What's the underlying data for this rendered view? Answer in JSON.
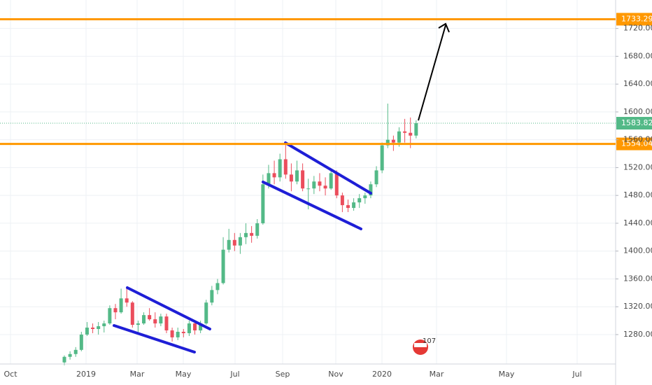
{
  "chart_data": {
    "type": "candlestick",
    "ylim": [
      1237.7,
      1760.9
    ],
    "yticks": [
      {
        "value": 1280,
        "label": "1280.00"
      },
      {
        "value": 1320,
        "label": "1320.00"
      },
      {
        "value": 1360,
        "label": "1360.00"
      },
      {
        "value": 1400,
        "label": "1400.00"
      },
      {
        "value": 1440,
        "label": "1440.00"
      },
      {
        "value": 1480,
        "label": "1480.00"
      },
      {
        "value": 1520,
        "label": "1520.00"
      },
      {
        "value": 1560,
        "label": "1560.00"
      },
      {
        "value": 1600,
        "label": "1600.00"
      },
      {
        "value": 1640,
        "label": "1640.00"
      },
      {
        "value": 1680,
        "label": "1680.00"
      },
      {
        "value": 1720,
        "label": "1720.00"
      }
    ],
    "xtick_labels": [
      "Oct",
      "2019",
      "Mar",
      "May",
      "Jul",
      "Sep",
      "Nov",
      "2020",
      "Mar",
      "May",
      "Jul"
    ],
    "up_color": "#53b987",
    "down_color": "#eb4d5c",
    "grid": true,
    "candles": [
      {
        "o": 1240,
        "h": 1250,
        "l": 1236,
        "c": 1248
      },
      {
        "o": 1248,
        "h": 1256,
        "l": 1244,
        "c": 1252
      },
      {
        "o": 1252,
        "h": 1262,
        "l": 1248,
        "c": 1258
      },
      {
        "o": 1258,
        "h": 1284,
        "l": 1256,
        "c": 1280
      },
      {
        "o": 1280,
        "h": 1298,
        "l": 1278,
        "c": 1290
      },
      {
        "o": 1290,
        "h": 1296,
        "l": 1282,
        "c": 1288
      },
      {
        "o": 1288,
        "h": 1298,
        "l": 1280,
        "c": 1292
      },
      {
        "o": 1292,
        "h": 1300,
        "l": 1283,
        "c": 1296
      },
      {
        "o": 1296,
        "h": 1322,
        "l": 1294,
        "c": 1318
      },
      {
        "o": 1318,
        "h": 1324,
        "l": 1302,
        "c": 1312
      },
      {
        "o": 1312,
        "h": 1346,
        "l": 1310,
        "c": 1332
      },
      {
        "o": 1332,
        "h": 1346,
        "l": 1320,
        "c": 1326
      },
      {
        "o": 1326,
        "h": 1328,
        "l": 1290,
        "c": 1294
      },
      {
        "o": 1294,
        "h": 1300,
        "l": 1282,
        "c": 1296
      },
      {
        "o": 1296,
        "h": 1312,
        "l": 1294,
        "c": 1308
      },
      {
        "o": 1308,
        "h": 1318,
        "l": 1300,
        "c": 1302
      },
      {
        "o": 1302,
        "h": 1312,
        "l": 1290,
        "c": 1296
      },
      {
        "o": 1296,
        "h": 1310,
        "l": 1292,
        "c": 1306
      },
      {
        "o": 1306,
        "h": 1310,
        "l": 1282,
        "c": 1286
      },
      {
        "o": 1286,
        "h": 1290,
        "l": 1270,
        "c": 1276
      },
      {
        "o": 1276,
        "h": 1290,
        "l": 1272,
        "c": 1284
      },
      {
        "o": 1284,
        "h": 1288,
        "l": 1276,
        "c": 1282
      },
      {
        "o": 1282,
        "h": 1300,
        "l": 1278,
        "c": 1296
      },
      {
        "o": 1296,
        "h": 1300,
        "l": 1280,
        "c": 1286
      },
      {
        "o": 1286,
        "h": 1300,
        "l": 1282,
        "c": 1296
      },
      {
        "o": 1296,
        "h": 1330,
        "l": 1294,
        "c": 1326
      },
      {
        "o": 1326,
        "h": 1350,
        "l": 1322,
        "c": 1344
      },
      {
        "o": 1344,
        "h": 1360,
        "l": 1338,
        "c": 1354
      },
      {
        "o": 1354,
        "h": 1420,
        "l": 1352,
        "c": 1402
      },
      {
        "o": 1402,
        "h": 1432,
        "l": 1398,
        "c": 1416
      },
      {
        "o": 1416,
        "h": 1426,
        "l": 1400,
        "c": 1408
      },
      {
        "o": 1408,
        "h": 1426,
        "l": 1396,
        "c": 1420
      },
      {
        "o": 1420,
        "h": 1440,
        "l": 1410,
        "c": 1426
      },
      {
        "o": 1426,
        "h": 1436,
        "l": 1412,
        "c": 1422
      },
      {
        "o": 1422,
        "h": 1446,
        "l": 1418,
        "c": 1440
      },
      {
        "o": 1440,
        "h": 1510,
        "l": 1438,
        "c": 1496
      },
      {
        "o": 1496,
        "h": 1524,
        "l": 1490,
        "c": 1512
      },
      {
        "o": 1512,
        "h": 1530,
        "l": 1496,
        "c": 1506
      },
      {
        "o": 1506,
        "h": 1540,
        "l": 1500,
        "c": 1532
      },
      {
        "o": 1532,
        "h": 1556,
        "l": 1504,
        "c": 1510
      },
      {
        "o": 1510,
        "h": 1526,
        "l": 1486,
        "c": 1500
      },
      {
        "o": 1500,
        "h": 1530,
        "l": 1496,
        "c": 1516
      },
      {
        "o": 1516,
        "h": 1526,
        "l": 1486,
        "c": 1490
      },
      {
        "o": 1490,
        "h": 1504,
        "l": 1460,
        "c": 1490
      },
      {
        "o": 1490,
        "h": 1508,
        "l": 1482,
        "c": 1500
      },
      {
        "o": 1500,
        "h": 1512,
        "l": 1486,
        "c": 1494
      },
      {
        "o": 1494,
        "h": 1506,
        "l": 1480,
        "c": 1490
      },
      {
        "o": 1490,
        "h": 1516,
        "l": 1488,
        "c": 1512
      },
      {
        "o": 1512,
        "h": 1516,
        "l": 1476,
        "c": 1480
      },
      {
        "o": 1480,
        "h": 1484,
        "l": 1456,
        "c": 1466
      },
      {
        "o": 1466,
        "h": 1474,
        "l": 1456,
        "c": 1462
      },
      {
        "o": 1462,
        "h": 1476,
        "l": 1458,
        "c": 1470
      },
      {
        "o": 1470,
        "h": 1482,
        "l": 1462,
        "c": 1476
      },
      {
        "o": 1476,
        "h": 1484,
        "l": 1468,
        "c": 1480
      },
      {
        "o": 1480,
        "h": 1500,
        "l": 1476,
        "c": 1496
      },
      {
        "o": 1496,
        "h": 1522,
        "l": 1492,
        "c": 1516
      },
      {
        "o": 1516,
        "h": 1556,
        "l": 1512,
        "c": 1552
      },
      {
        "o": 1552,
        "h": 1612,
        "l": 1548,
        "c": 1560
      },
      {
        "o": 1560,
        "h": 1566,
        "l": 1544,
        "c": 1556
      },
      {
        "o": 1556,
        "h": 1578,
        "l": 1550,
        "c": 1572
      },
      {
        "o": 1572,
        "h": 1590,
        "l": 1556,
        "c": 1570
      },
      {
        "o": 1570,
        "h": 1592,
        "l": 1548,
        "c": 1566
      },
      {
        "o": 1566,
        "h": 1588,
        "l": 1562,
        "c": 1583.82
      }
    ],
    "levels": [
      {
        "value": 1733.29,
        "color": "#ff9800"
      },
      {
        "value": 1554.04,
        "color": "#ff9800"
      }
    ],
    "last_price": {
      "value": 1583.82,
      "color": "#53b987"
    },
    "badge": "107"
  }
}
